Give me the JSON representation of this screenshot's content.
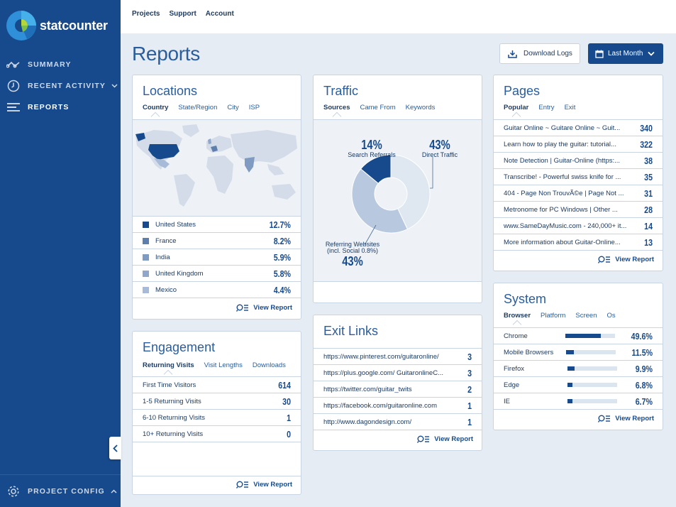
{
  "app": {
    "brand": "statcounter"
  },
  "sidebar": {
    "items": [
      {
        "label": "SUMMARY",
        "icon": "summary-line-icon"
      },
      {
        "label": "RECENT ACTIVITY",
        "icon": "clock-icon"
      },
      {
        "label": "REPORTS",
        "icon": "reports-list-icon"
      }
    ],
    "footer_label": "PROJECT CONFIG"
  },
  "topnav": {
    "items": [
      "Projects",
      "Support",
      "Account"
    ]
  },
  "page": {
    "title": "Reports",
    "download_logs": "Download Logs",
    "period": "Last Month"
  },
  "locations": {
    "title": "Locations",
    "tabs": [
      "Country",
      "State/Region",
      "City",
      "ISP"
    ],
    "rows": [
      {
        "label": "United States",
        "value": "12.7%",
        "color": "#174a8c"
      },
      {
        "label": "France",
        "value": "8.2%",
        "color": "#5d7fad"
      },
      {
        "label": "India",
        "value": "5.9%",
        "color": "#7f9bc2"
      },
      {
        "label": "United Kingdom",
        "value": "5.8%",
        "color": "#8ea7cb"
      },
      {
        "label": "Mexico",
        "value": "4.4%",
        "color": "#a7bbd8"
      }
    ],
    "view_report": "View Report"
  },
  "traffic": {
    "title": "Traffic",
    "tabs": [
      "Sources",
      "Came From",
      "Keywords"
    ],
    "slices": [
      {
        "label": "Search Referrals",
        "pct": "14%",
        "value": 14,
        "color": "#174a8c"
      },
      {
        "label": "Direct Traffic",
        "pct": "43%",
        "value": 43,
        "color": "#dfe7f1"
      },
      {
        "label_line1": "Referring Websites",
        "label_line2": "(incl. Social 0.8%)",
        "pct": "43%",
        "value": 43,
        "color": "#b8c9df"
      }
    ]
  },
  "pages": {
    "title": "Pages",
    "tabs": [
      "Popular",
      "Entry",
      "Exit"
    ],
    "rows": [
      {
        "label": "Guitar Online ~ Guitare Online ~ Guit...",
        "value": "340"
      },
      {
        "label": "Learn how to play the guitar: tutorial...",
        "value": "322"
      },
      {
        "label": "Note Detection | Guitar-Online (https:...",
        "value": "38"
      },
      {
        "label": "Transcribe! - Powerful swiss knife for ...",
        "value": "35"
      },
      {
        "label": "404 - Page Non TrouvÃ©e | Page Not ...",
        "value": "31"
      },
      {
        "label": "Metronome for PC Windows | Other ...",
        "value": "28"
      },
      {
        "label": "www.SameDayMusic.com - 240,000+ it...",
        "value": "14"
      },
      {
        "label": "More information about Guitar-Online...",
        "value": "13"
      }
    ],
    "view_report": "View Report"
  },
  "engagement": {
    "title": "Engagement",
    "tabs": [
      "Returning Visits",
      "Visit Lengths",
      "Downloads"
    ],
    "rows": [
      {
        "label": "First Time Visitors",
        "value": "614"
      },
      {
        "label": "1-5 Returning Visits",
        "value": "30"
      },
      {
        "label": "6-10 Returning Visits",
        "value": "1"
      },
      {
        "label": "10+ Returning Visits",
        "value": "0"
      }
    ],
    "view_report": "View Report"
  },
  "exit_links": {
    "title": "Exit Links",
    "rows": [
      {
        "label": "https://www.pinterest.com/guitaronline/",
        "value": "3"
      },
      {
        "label": "https://plus.google.com/ GuitaronlineC...",
        "value": "3"
      },
      {
        "label": "https://twitter.com/guitar_twits",
        "value": "2"
      },
      {
        "label": "https://facebook.com/guitaronline.com",
        "value": "1"
      },
      {
        "label": "http://www.dagondesign.com/",
        "value": "1"
      }
    ],
    "view_report": "View Report"
  },
  "system": {
    "title": "System",
    "tabs": [
      "Browser",
      "Platform",
      "Screen",
      "Os"
    ],
    "rows": [
      {
        "label": "Chrome",
        "value": "49.6%",
        "fraction": 0.496
      },
      {
        "label": "Mobile Browsers",
        "value": "11.5%",
        "fraction": 0.115
      },
      {
        "label": "Firefox",
        "value": "9.9%",
        "fraction": 0.099
      },
      {
        "label": "Edge",
        "value": "6.8%",
        "fraction": 0.068
      },
      {
        "label": "IE",
        "value": "6.7%",
        "fraction": 0.067
      }
    ],
    "view_report": "View Report"
  }
}
